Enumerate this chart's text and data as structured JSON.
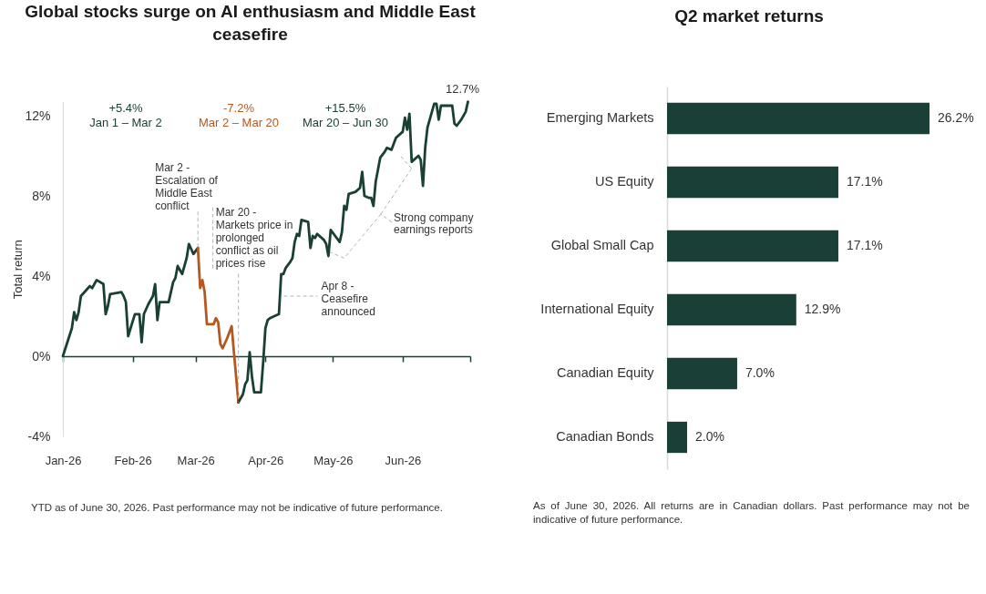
{
  "chart_data": [
    {
      "type": "line",
      "title": "Global stocks surge on AI enthusiasm and Middle East\nceasefire",
      "ylabel": "Total return",
      "xlim": [
        "2026-01-01",
        "2026-07-01"
      ],
      "xticks": [
        {
          "value": "2026-01-01",
          "label": "Jan-26"
        },
        {
          "value": "2026-02-01",
          "label": "Feb-26"
        },
        {
          "value": "2026-03-01",
          "label": "Mar-26"
        },
        {
          "value": "2026-04-01",
          "label": "Apr-26"
        },
        {
          "value": "2026-05-01",
          "label": "May-26"
        },
        {
          "value": "2026-06-01",
          "label": "Jun-26"
        },
        {
          "value": "2026-07-01",
          "label": null
        }
      ],
      "ylim": [
        -4,
        12.7
      ],
      "yticks": [
        {
          "value": -4,
          "label": "-4%"
        },
        {
          "value": 0,
          "label": "0%"
        },
        {
          "value": 4,
          "label": "4%"
        },
        {
          "value": 8,
          "label": "8%"
        },
        {
          "value": 12,
          "label": "12%"
        }
      ],
      "series": [
        {
          "color": "#1a4036",
          "x": [
            "2026-01-01",
            "2026-01-05",
            "2026-01-06",
            "2026-01-07",
            "2026-01-08",
            "2026-01-09",
            "2026-01-13",
            "2026-01-14",
            "2026-01-16",
            "2026-01-19",
            "2026-01-20",
            "2026-01-21",
            "2026-01-22",
            "2026-01-27",
            "2026-01-28",
            "2026-01-29",
            "2026-01-30",
            "2026-02-02",
            "2026-02-04",
            "2026-02-05",
            "2026-02-06",
            "2026-02-08",
            "2026-02-10",
            "2026-02-11",
            "2026-02-12",
            "2026-02-13",
            "2026-02-17",
            "2026-02-19",
            "2026-02-20",
            "2026-02-21",
            "2026-02-23",
            "2026-02-25",
            "2026-02-26",
            "2026-02-28",
            "2026-03-02"
          ],
          "values": [
            0,
            1.4,
            2.2,
            1.8,
            2.2,
            3.0,
            3.5,
            3.4,
            3.8,
            3.6,
            2.1,
            2.5,
            3.1,
            3.2,
            3.0,
            2.7,
            1.0,
            2.1,
            2.1,
            0.7,
            2.1,
            2.6,
            3.0,
            3.6,
            1.8,
            2.7,
            2.7,
            3.7,
            3.9,
            4.5,
            4.1,
            4.9,
            5.6,
            5.1,
            5.4
          ]
        },
        {
          "color": "#b4581f",
          "x": [
            "2026-03-02",
            "2026-03-03",
            "2026-03-04",
            "2026-03-05",
            "2026-03-06",
            "2026-03-09",
            "2026-03-10",
            "2026-03-11",
            "2026-03-12",
            "2026-03-13",
            "2026-03-15",
            "2026-03-17",
            "2026-03-18",
            "2026-03-20"
          ],
          "values": [
            5.4,
            3.4,
            3.8,
            3.2,
            1.6,
            1.6,
            1.9,
            1.7,
            0.6,
            0.4,
            0.9,
            1.5,
            0.2,
            -2.3
          ]
        },
        {
          "color": "#1a4036",
          "x": [
            "2026-03-20",
            "2026-03-22",
            "2026-03-23",
            "2026-03-24",
            "2026-03-25",
            "2026-03-26",
            "2026-03-27",
            "2026-03-30",
            "2026-03-31",
            "2026-04-01",
            "2026-04-02",
            "2026-04-03",
            "2026-04-07",
            "2026-04-08",
            "2026-04-09",
            "2026-04-10",
            "2026-04-12",
            "2026-04-13",
            "2026-04-14",
            "2026-04-15",
            "2026-04-16",
            "2026-04-17",
            "2026-04-20",
            "2026-04-21",
            "2026-04-22",
            "2026-04-23",
            "2026-04-24",
            "2026-04-27",
            "2026-04-28",
            "2026-04-29",
            "2026-04-30",
            "2026-05-02",
            "2026-05-04",
            "2026-05-05",
            "2026-05-06",
            "2026-05-07",
            "2026-05-08",
            "2026-05-11",
            "2026-05-13",
            "2026-05-14",
            "2026-05-15",
            "2026-05-17",
            "2026-05-18",
            "2026-05-19",
            "2026-05-20",
            "2026-05-22",
            "2026-05-24",
            "2026-05-25",
            "2026-05-27",
            "2026-05-29",
            "2026-06-01",
            "2026-06-02",
            "2026-06-03",
            "2026-06-04",
            "2026-06-05",
            "2026-06-08",
            "2026-06-09",
            "2026-06-10",
            "2026-06-11",
            "2026-06-12",
            "2026-06-15",
            "2026-06-16",
            "2026-06-17",
            "2026-06-18",
            "2026-06-23",
            "2026-06-24",
            "2026-06-25",
            "2026-06-27",
            "2026-06-29",
            "2026-06-30"
          ],
          "values": [
            -2.3,
            -1.9,
            -1.4,
            -1.2,
            0.2,
            -1.0,
            -1.8,
            -1.8,
            -0.3,
            1.4,
            1.8,
            1.9,
            2.1,
            4.1,
            4.1,
            4.4,
            4.7,
            4.9,
            5.7,
            6.1,
            6.0,
            6.8,
            6.7,
            5.4,
            6.0,
            5.9,
            6.1,
            5.8,
            5.6,
            5.0,
            6.3,
            6.0,
            5.7,
            6.2,
            7.5,
            7.3,
            8.1,
            8.2,
            8.4,
            9.2,
            8.0,
            7.9,
            7.9,
            7.5,
            8.7,
            9.9,
            10.2,
            10.4,
            10.3,
            10.9,
            11.2,
            11.9,
            11.3,
            12.1,
            9.7,
            10.0,
            9.8,
            8.5,
            10.4,
            11.4,
            12.6,
            12.6,
            11.8,
            12.5,
            12.5,
            11.6,
            11.5,
            11.8,
            12.2,
            12.7
          ]
        }
      ],
      "annotations": [
        "+5.4%\nJan 1 – Mar 2",
        "-7.2%\nMar 2 – Mar 20",
        "+15.5%\nMar 20 – Jun 30",
        {
          "text": "12.7%",
          "x": "2026-06-30",
          "y": 12.7
        },
        {
          "text": "Mar 2 -\nEscalation of\nMiddle East\nconflict",
          "x": "2026-03-02",
          "y": 5.4
        },
        {
          "text": "Mar 20 -\nMarkets price in\nprolonged\nconflict as oil\nprices rise",
          "x": "2026-03-20",
          "y": -2.3
        },
        {
          "text": "Apr 8 -\nCeasefire\nannounced",
          "x": "2026-04-08",
          "y": 3
        },
        "Strong company\nearnings reports",
        "YTD as of June 30, 2026. Past performance may not be indicative of future performance."
      ]
    },
    {
      "type": "bar",
      "orientation": "horizontal",
      "title": "Q2 market returns",
      "categories": [
        "Emerging Markets",
        "US Equity",
        "Global Small Cap",
        "International Equity",
        "Canadian Equity",
        "Canadian Bonds"
      ],
      "values": [
        26.2,
        17.1,
        17.1,
        12.9,
        7.0,
        2.0
      ],
      "color": "#1a3f36",
      "value_labels": [
        "26.2%",
        "17.1%",
        "17.1%",
        "12.9%",
        "7.0%",
        "2.0%"
      ],
      "annotations": [
        "As of June 30, 2026. All returns are in Canadian dollars. Past performance may not be indicative of future performance."
      ]
    }
  ]
}
